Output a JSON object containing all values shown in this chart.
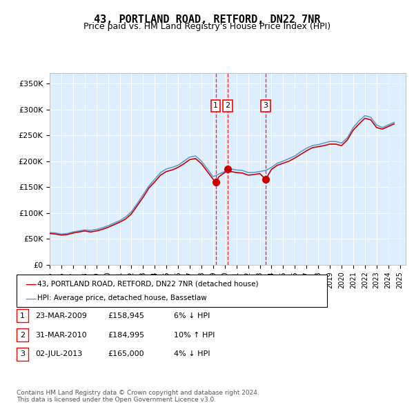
{
  "title": "43, PORTLAND ROAD, RETFORD, DN22 7NR",
  "subtitle": "Price paid vs. HM Land Registry's House Price Index (HPI)",
  "ylabel_ticks": [
    "£0",
    "£50K",
    "£100K",
    "£150K",
    "£200K",
    "£250K",
    "£300K",
    "£350K"
  ],
  "ylim": [
    0,
    370000
  ],
  "xlim_start": 1995.0,
  "xlim_end": 2025.5,
  "transactions": [
    {
      "label": "1",
      "date": 2009.22,
      "price": 158945
    },
    {
      "label": "2",
      "date": 2010.25,
      "price": 184995
    },
    {
      "label": "3",
      "date": 2013.5,
      "price": 165000
    }
  ],
  "legend_entries": [
    "43, PORTLAND ROAD, RETFORD, DN22 7NR (detached house)",
    "HPI: Average price, detached house, Bassetlaw"
  ],
  "table_rows": [
    [
      "1",
      "23-MAR-2009",
      "£158,945",
      "6% ↓ HPI"
    ],
    [
      "2",
      "31-MAR-2010",
      "£184,995",
      "10% ↑ HPI"
    ],
    [
      "3",
      "02-JUL-2013",
      "£165,000",
      "4% ↓ HPI"
    ]
  ],
  "footer": "Contains HM Land Registry data © Crown copyright and database right 2024.\nThis data is licensed under the Open Government Licence v3.0.",
  "line_color_red": "#cc0000",
  "line_color_blue": "#6699cc",
  "background_plot": "#ddeeff",
  "background_right": "#ddeeff",
  "grid_color": "#ffffff",
  "hpi_data_x": [
    1995,
    1995.5,
    1996,
    1996.5,
    1997,
    1997.5,
    1998,
    1998.5,
    1999,
    1999.5,
    2000,
    2000.5,
    2001,
    2001.5,
    2002,
    2002.5,
    2003,
    2003.5,
    2004,
    2004.5,
    2005,
    2005.5,
    2006,
    2006.5,
    2007,
    2007.5,
    2008,
    2008.5,
    2009,
    2009.5,
    2010,
    2010.5,
    2011,
    2011.5,
    2012,
    2012.5,
    2013,
    2013.5,
    2014,
    2014.5,
    2015,
    2015.5,
    2016,
    2016.5,
    2017,
    2017.5,
    2018,
    2018.5,
    2019,
    2019.5,
    2020,
    2020.5,
    2021,
    2021.5,
    2022,
    2022.5,
    2023,
    2023.5,
    2024,
    2024.5
  ],
  "hpi_data_y": [
    62000,
    61000,
    59000,
    60000,
    63000,
    65000,
    67000,
    66000,
    68000,
    71000,
    75000,
    80000,
    85000,
    92000,
    102000,
    118000,
    135000,
    152000,
    165000,
    178000,
    185000,
    188000,
    192000,
    200000,
    208000,
    210000,
    200000,
    185000,
    170000,
    175000,
    180000,
    185000,
    183000,
    182000,
    178000,
    178000,
    180000,
    182000,
    188000,
    196000,
    200000,
    205000,
    210000,
    218000,
    225000,
    230000,
    232000,
    235000,
    238000,
    238000,
    235000,
    245000,
    265000,
    278000,
    288000,
    285000,
    270000,
    265000,
    270000,
    275000
  ],
  "red_data_x": [
    1995,
    1995.5,
    1996,
    1996.5,
    1997,
    1997.5,
    1998,
    1998.5,
    1999,
    1999.5,
    2000,
    2000.5,
    2001,
    2001.5,
    2002,
    2002.5,
    2003,
    2003.5,
    2004,
    2004.5,
    2005,
    2005.5,
    2006,
    2006.5,
    2007,
    2007.5,
    2008,
    2008.5,
    2009,
    2009.22,
    2009.5,
    2010,
    2010.25,
    2010.5,
    2011,
    2011.5,
    2012,
    2012.5,
    2013,
    2013.5,
    2014,
    2014.5,
    2015,
    2015.5,
    2016,
    2016.5,
    2017,
    2017.5,
    2018,
    2018.5,
    2019,
    2019.5,
    2020,
    2020.5,
    2021,
    2021.5,
    2022,
    2022.5,
    2023,
    2023.5,
    2024,
    2024.5
  ],
  "red_data_y": [
    60000,
    59000,
    57000,
    58000,
    61000,
    63000,
    65000,
    63000,
    65000,
    68000,
    72000,
    77000,
    82000,
    88000,
    98000,
    114000,
    130000,
    148000,
    160000,
    173000,
    180000,
    183000,
    188000,
    195000,
    203000,
    205000,
    195000,
    180000,
    165000,
    158945,
    170000,
    178000,
    184995,
    180000,
    178000,
    177000,
    173000,
    174000,
    176000,
    165000,
    184000,
    192000,
    196000,
    200000,
    206000,
    213000,
    220000,
    226000,
    228000,
    230000,
    233000,
    233000,
    230000,
    241000,
    260000,
    272000,
    283000,
    280000,
    265000,
    262000,
    267000,
    272000
  ]
}
